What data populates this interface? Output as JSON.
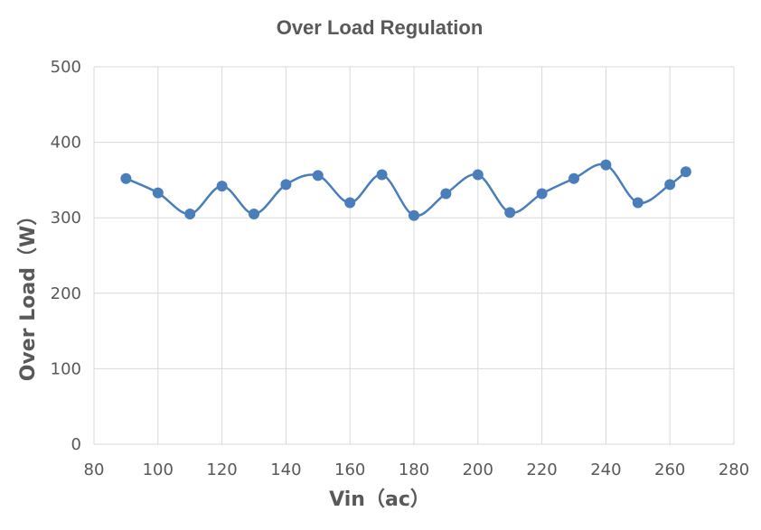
{
  "chart_data": {
    "type": "line",
    "title": "Over Load Regulation",
    "xlabel": "Vin（ac）",
    "ylabel": "Over Load（W）",
    "xlim": [
      80,
      280
    ],
    "ylim": [
      0,
      500
    ],
    "x_ticks": [
      "80",
      "100",
      "120",
      "140",
      "160",
      "180",
      "200",
      "220",
      "240",
      "260",
      "280"
    ],
    "y_ticks": [
      "0",
      "100",
      "200",
      "300",
      "400",
      "500"
    ],
    "grid": true,
    "legend": "none",
    "line_color": "#4a7ebb",
    "smooth": true,
    "series": [
      {
        "x": [
          90,
          100,
          110,
          120,
          130,
          140,
          150,
          160,
          170,
          180,
          190,
          200,
          210,
          220,
          230,
          240,
          250,
          260,
          265
        ],
        "values": [
          352,
          333,
          305,
          342,
          305,
          344,
          356,
          320,
          357,
          303,
          332,
          357,
          307,
          332,
          352,
          370,
          320,
          344,
          361
        ]
      }
    ]
  }
}
